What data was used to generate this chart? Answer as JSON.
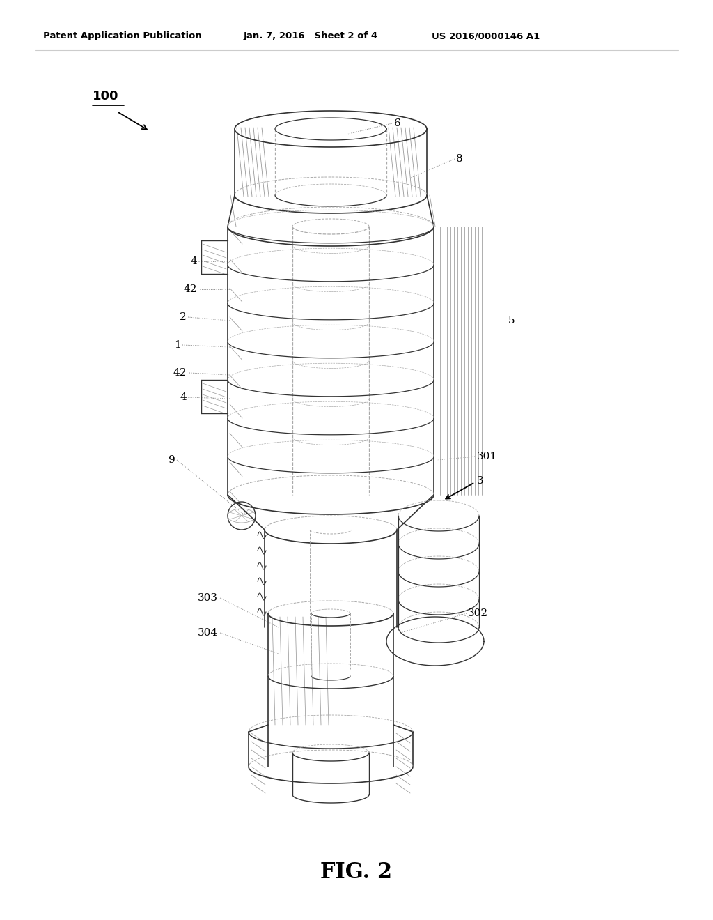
{
  "bg": "#ffffff",
  "header_left": "Patent Application Publication",
  "header_center": "Jan. 7, 2016   Sheet 2 of 4",
  "header_right": "US 2016/0000146 A1",
  "fig_label": "FIG. 2",
  "lc": "#333333",
  "dlc": "#aaaaaa",
  "tlc": "#999999",
  "tc": "#000000",
  "header_fs": 9.5,
  "label_fs": 11,
  "fig_fs": 22
}
